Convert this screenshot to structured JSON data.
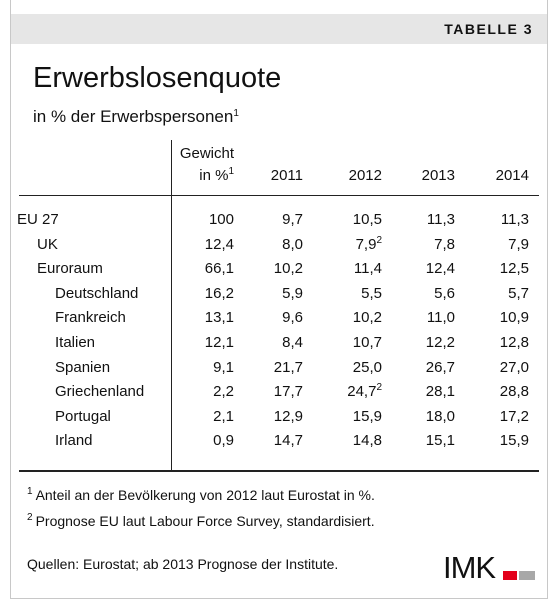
{
  "header": {
    "label": "TABELLE 3",
    "title": "Erwerbslosenquote",
    "subtitle": "in % der Erwerbspersonen",
    "subtitle_note": "1"
  },
  "table": {
    "columns": [
      {
        "line1": "Gewicht",
        "line2": "in %",
        "note": "1"
      },
      {
        "line2": "2011"
      },
      {
        "line2": "2012"
      },
      {
        "line2": "2013"
      },
      {
        "line2": "2014"
      }
    ],
    "rows": [
      {
        "label": "EU 27",
        "cells": [
          {
            "text": "100"
          },
          {
            "text": "9,7"
          },
          {
            "text": "10,5"
          },
          {
            "text": "11,3"
          },
          {
            "text": "11,3"
          }
        ]
      },
      {
        "label": "UK",
        "cells": [
          {
            "text": "12,4"
          },
          {
            "text": "8,0"
          },
          {
            "text": "7,9",
            "note": "2"
          },
          {
            "text": "7,8"
          },
          {
            "text": "7,9"
          }
        ]
      },
      {
        "label": "Euroraum",
        "cells": [
          {
            "text": "66,1"
          },
          {
            "text": "10,2"
          },
          {
            "text": "11,4"
          },
          {
            "text": "12,4"
          },
          {
            "text": "12,5"
          }
        ]
      },
      {
        "label": "Deutschland",
        "cells": [
          {
            "text": "16,2"
          },
          {
            "text": "5,9"
          },
          {
            "text": "5,5"
          },
          {
            "text": "5,6"
          },
          {
            "text": "5,7"
          }
        ]
      },
      {
        "label": "Frankreich",
        "cells": [
          {
            "text": "13,1"
          },
          {
            "text": "9,6"
          },
          {
            "text": "10,2"
          },
          {
            "text": "11,0"
          },
          {
            "text": "10,9"
          }
        ]
      },
      {
        "label": "Italien",
        "cells": [
          {
            "text": "12,1"
          },
          {
            "text": "8,4"
          },
          {
            "text": "10,7"
          },
          {
            "text": "12,2"
          },
          {
            "text": "12,8"
          }
        ]
      },
      {
        "label": "Spanien",
        "cells": [
          {
            "text": "9,1"
          },
          {
            "text": "21,7"
          },
          {
            "text": "25,0"
          },
          {
            "text": "26,7"
          },
          {
            "text": "27,0"
          }
        ]
      },
      {
        "label": "Griechenland",
        "cells": [
          {
            "text": "2,2"
          },
          {
            "text": "17,7"
          },
          {
            "text": "24,7",
            "note": "2"
          },
          {
            "text": "28,1"
          },
          {
            "text": "28,8"
          }
        ]
      },
      {
        "label": "Portugal",
        "cells": [
          {
            "text": "2,1"
          },
          {
            "text": "12,9"
          },
          {
            "text": "15,9"
          },
          {
            "text": "18,0"
          },
          {
            "text": "17,2"
          }
        ]
      },
      {
        "label": "Irland",
        "cells": [
          {
            "text": "0,9"
          },
          {
            "text": "14,7"
          },
          {
            "text": "14,8"
          },
          {
            "text": "15,1"
          },
          {
            "text": "15,9"
          }
        ]
      }
    ]
  },
  "footnotes": [
    {
      "mark": "1",
      "text": "Anteil an der Bevölkerung von 2012 laut Eurostat in %."
    },
    {
      "mark": "2",
      "text": "Prognose EU laut Labour Force Survey, standardisiert."
    }
  ],
  "source": "Quellen: Eurostat; ab 2013 Prognose der Institute.",
  "logo": "IMK"
}
